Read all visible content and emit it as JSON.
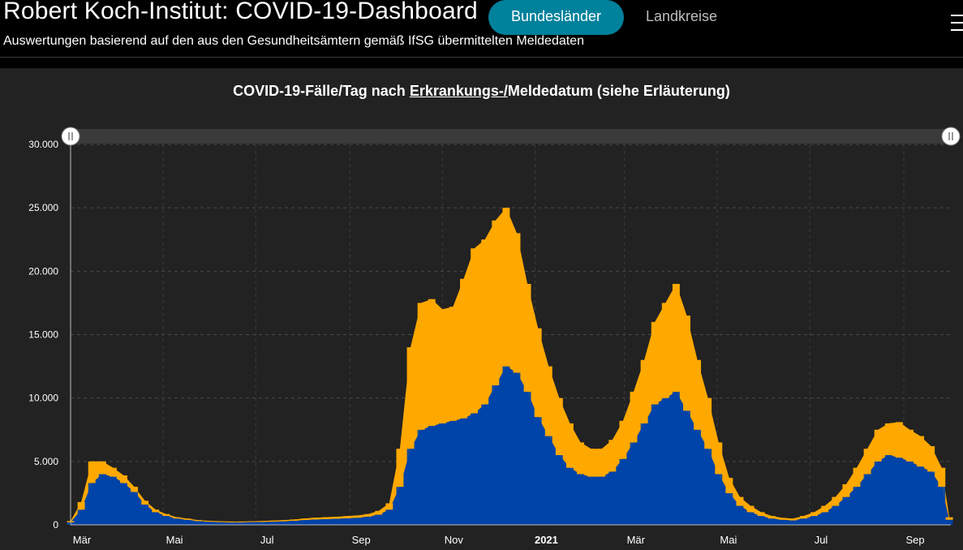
{
  "header": {
    "title": "Robert Koch-Institut: COVID-19-Dashboard",
    "subtitle": "Auswertungen basierend auf den aus den Gesundheitsämtern gemäß IfSG übermittelten Meldedaten",
    "tabs": [
      {
        "label": "Bundesländer",
        "active": true
      },
      {
        "label": "Landkreise",
        "active": false
      }
    ]
  },
  "colors": {
    "background": "#000000",
    "panel": "#222222",
    "accent": "#00819c",
    "series_primary": "#0044a8",
    "series_secondary": "#ffa800"
  },
  "chart": {
    "title_pre": "COVID-19-Fälle/Tag nach ",
    "title_link": "Erkrankungs-/",
    "title_post": "Meldedatum (siehe Erläuterung)"
  },
  "chart_data": {
    "type": "bar",
    "stacked": true,
    "ylim": [
      0,
      30000
    ],
    "yticks": [
      0,
      5000,
      10000,
      15000,
      20000,
      25000,
      30000
    ],
    "ytick_labels": [
      "0",
      "5.000",
      "10.000",
      "15.000",
      "20.000",
      "25.000",
      "30.000"
    ],
    "xlim": [
      "2020-03-01",
      "2021-10-02"
    ],
    "xticks": [
      {
        "date": "2020-03-01",
        "label": "Mär",
        "bold": false
      },
      {
        "date": "2020-05-01",
        "label": "Mai",
        "bold": false
      },
      {
        "date": "2020-07-01",
        "label": "Jul",
        "bold": false
      },
      {
        "date": "2020-09-01",
        "label": "Sep",
        "bold": false
      },
      {
        "date": "2020-11-01",
        "label": "Nov",
        "bold": false
      },
      {
        "date": "2021-01-01",
        "label": "2021",
        "bold": true
      },
      {
        "date": "2021-03-01",
        "label": "Mär",
        "bold": false
      },
      {
        "date": "2021-05-01",
        "label": "Mai",
        "bold": false
      },
      {
        "date": "2021-07-01",
        "label": "Jul",
        "bold": false
      },
      {
        "date": "2021-09-01",
        "label": "Sep",
        "bold": false
      }
    ],
    "grid": true,
    "series_colors": [
      "#0044a8",
      "#ffa800"
    ],
    "x": [
      "2020-03-01",
      "2020-03-08",
      "2020-03-15",
      "2020-03-22",
      "2020-03-29",
      "2020-04-05",
      "2020-04-12",
      "2020-04-19",
      "2020-04-26",
      "2020-05-03",
      "2020-05-10",
      "2020-05-17",
      "2020-05-24",
      "2020-05-31",
      "2020-06-07",
      "2020-06-14",
      "2020-06-21",
      "2020-06-28",
      "2020-07-05",
      "2020-07-12",
      "2020-07-19",
      "2020-07-26",
      "2020-08-02",
      "2020-08-09",
      "2020-08-16",
      "2020-08-23",
      "2020-08-30",
      "2020-09-06",
      "2020-09-13",
      "2020-09-20",
      "2020-09-27",
      "2020-10-04",
      "2020-10-11",
      "2020-10-18",
      "2020-10-25",
      "2020-11-01",
      "2020-11-08",
      "2020-11-15",
      "2020-11-22",
      "2020-11-29",
      "2020-12-06",
      "2020-12-13",
      "2020-12-20",
      "2020-12-27",
      "2021-01-03",
      "2021-01-10",
      "2021-01-17",
      "2021-01-24",
      "2021-01-31",
      "2021-02-07",
      "2021-02-14",
      "2021-02-21",
      "2021-02-28",
      "2021-03-07",
      "2021-03-14",
      "2021-03-21",
      "2021-03-28",
      "2021-04-04",
      "2021-04-11",
      "2021-04-18",
      "2021-04-25",
      "2021-05-02",
      "2021-05-09",
      "2021-05-16",
      "2021-05-23",
      "2021-05-30",
      "2021-06-06",
      "2021-06-13",
      "2021-06-20",
      "2021-06-27",
      "2021-07-04",
      "2021-07-11",
      "2021-07-18",
      "2021-07-25",
      "2021-08-01",
      "2021-08-08",
      "2021-08-15",
      "2021-08-22",
      "2021-08-29",
      "2021-09-05",
      "2021-09-12",
      "2021-09-19",
      "2021-09-26",
      "2021-10-01"
    ],
    "series": [
      {
        "values": [
          200,
          1200,
          3300,
          4000,
          3800,
          3300,
          2600,
          1600,
          1000,
          700,
          500,
          400,
          300,
          250,
          220,
          200,
          200,
          220,
          230,
          250,
          280,
          320,
          380,
          420,
          450,
          480,
          520,
          560,
          650,
          800,
          1200,
          3000,
          6000,
          7500,
          7800,
          8000,
          8200,
          8400,
          8800,
          9500,
          11000,
          12500,
          12000,
          10500,
          8500,
          7000,
          5500,
          4500,
          4000,
          3800,
          3800,
          4200,
          5200,
          6500,
          8000,
          9500,
          10000,
          10500,
          9000,
          7500,
          6000,
          4000,
          2500,
          1500,
          1000,
          700,
          500,
          400,
          350,
          500,
          700,
          1000,
          1500,
          2200,
          3000,
          4000,
          5000,
          5500,
          5300,
          5000,
          4600,
          4200,
          3000,
          400
        ]
      },
      {
        "values": [
          100,
          600,
          1700,
          1000,
          700,
          600,
          400,
          300,
          200,
          150,
          100,
          100,
          80,
          70,
          70,
          60,
          60,
          60,
          70,
          80,
          90,
          100,
          120,
          140,
          150,
          160,
          170,
          180,
          200,
          300,
          500,
          3000,
          8000,
          10000,
          10000,
          9000,
          9000,
          11000,
          13000,
          13000,
          13000,
          12500,
          11000,
          8500,
          7000,
          5500,
          4500,
          3500,
          2500,
          2200,
          2200,
          2500,
          3000,
          4000,
          5000,
          6500,
          7500,
          8500,
          7500,
          5500,
          4000,
          2500,
          1200,
          700,
          500,
          300,
          200,
          150,
          150,
          200,
          300,
          500,
          700,
          1000,
          1500,
          2000,
          2500,
          2500,
          2800,
          2500,
          2400,
          2000,
          1500,
          200
        ]
      }
    ]
  }
}
